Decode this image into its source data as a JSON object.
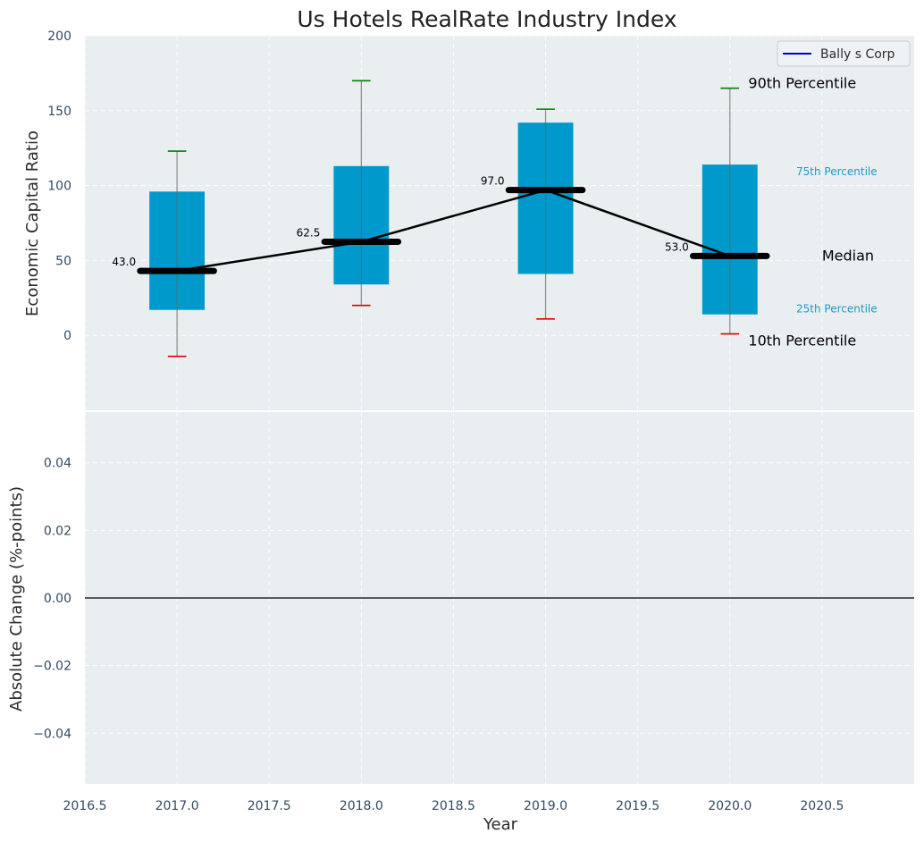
{
  "chart_data": [
    {
      "type": "box",
      "title": "Us Hotels RealRate Industry Index",
      "ylabel": "Economic Capital Ratio",
      "ylim": [
        -50,
        200
      ],
      "yticks": [
        "0",
        "50",
        "100",
        "150",
        "200"
      ],
      "years": [
        2017,
        2018,
        2019,
        2020
      ],
      "boxes": [
        {
          "year": 2017,
          "p10": -14,
          "p25": 17,
          "median": 43.0,
          "p75": 96,
          "p90": 123,
          "label": "43.0"
        },
        {
          "year": 2018,
          "p10": 20,
          "p25": 34,
          "median": 62.5,
          "p75": 113,
          "p90": 170,
          "label": "62.5"
        },
        {
          "year": 2019,
          "p10": 11,
          "p25": 41,
          "median": 97.0,
          "p75": 142,
          "p90": 151,
          "label": "97.0"
        },
        {
          "year": 2020,
          "p10": 1,
          "p25": 14,
          "median": 53.0,
          "p75": 114,
          "p90": 165,
          "label": "53.0"
        }
      ],
      "median_line": [
        43.0,
        62.5,
        97.0,
        53.0
      ],
      "legend": [
        {
          "name": "Bally s Corp",
          "color": "#0000cc"
        }
      ],
      "annotations": {
        "p90": "90th Percentile",
        "p75": "75th Percentile",
        "median": "Median",
        "p25": "25th Percentile",
        "p10": "10th Percentile"
      },
      "colors": {
        "box": "#0099cc",
        "median": "#000000",
        "p90_cap": "#008000",
        "p10_cap": "#dd0000",
        "background": "#e9eef0"
      }
    },
    {
      "type": "line",
      "xlabel": "Year",
      "ylabel": "Absolute Change (%-points)",
      "xlim": [
        2016.5,
        2021.0
      ],
      "ylim": [
        -0.055,
        0.055
      ],
      "xticks": [
        "2016.5",
        "2017.0",
        "2017.5",
        "2018.0",
        "2018.5",
        "2019.0",
        "2019.5",
        "2020.0",
        "2020.5"
      ],
      "yticks": [
        "0.04",
        "0.02",
        "0.00",
        "−0.02",
        "−0.04"
      ],
      "series": []
    }
  ]
}
